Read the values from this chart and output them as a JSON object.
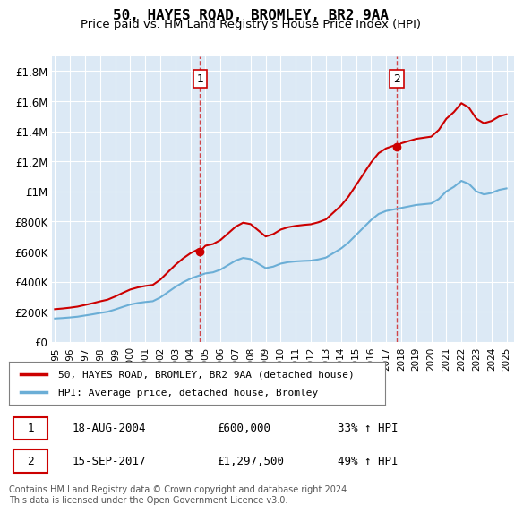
{
  "title": "50, HAYES ROAD, BROMLEY, BR2 9AA",
  "subtitle": "Price paid vs. HM Land Registry's House Price Index (HPI)",
  "background_color": "#dce9f5",
  "plot_bg_color": "#dce9f5",
  "ylim": [
    0,
    1900000
  ],
  "yticks": [
    0,
    200000,
    400000,
    600000,
    800000,
    1000000,
    1200000,
    1400000,
    1600000,
    1800000
  ],
  "ytick_labels": [
    "£0",
    "£200K",
    "£400K",
    "£600K",
    "£800K",
    "£1M",
    "£1.2M",
    "£1.4M",
    "£1.6M",
    "£1.8M"
  ],
  "hpi_color": "#6baed6",
  "price_color": "#cc0000",
  "sale1_date_x": 2004.63,
  "sale1_price": 600000,
  "sale1_label": "1",
  "sale1_date_str": "18-AUG-2004",
  "sale1_amount_str": "£600,000",
  "sale1_pct_str": "33% ↑ HPI",
  "sale2_date_x": 2017.71,
  "sale2_price": 1297500,
  "sale2_label": "2",
  "sale2_date_str": "15-SEP-2017",
  "sale2_amount_str": "£1,297,500",
  "sale2_pct_str": "49% ↑ HPI",
  "legend_label1": "50, HAYES ROAD, BROMLEY, BR2 9AA (detached house)",
  "legend_label2": "HPI: Average price, detached house, Bromley",
  "footer": "Contains HM Land Registry data © Crown copyright and database right 2024.\nThis data is licensed under the Open Government Licence v3.0.",
  "xtick_years": [
    1995,
    1996,
    1997,
    1998,
    1999,
    2000,
    2001,
    2002,
    2003,
    2004,
    2005,
    2006,
    2007,
    2008,
    2009,
    2010,
    2011,
    2012,
    2013,
    2014,
    2015,
    2016,
    2017,
    2018,
    2019,
    2020,
    2021,
    2022,
    2023,
    2024,
    2025
  ]
}
